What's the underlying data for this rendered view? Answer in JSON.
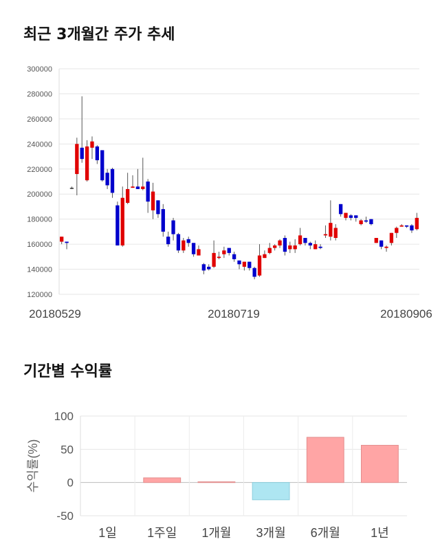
{
  "sections": {
    "price_title": "최근 3개월간 주가 추세",
    "returns_title": "기간별 수익률"
  },
  "colors": {
    "up": "#e00000",
    "down": "#0000cc",
    "positive_bar": "#ffa5a5",
    "negative_bar": "#aee6f2"
  },
  "chart_data": [
    {
      "type": "candlestick",
      "title": "최근 3개월간 주가 추세",
      "ylim": [
        120000,
        300000
      ],
      "yticks": [
        "300000",
        "280000",
        "260000",
        "240000",
        "220000",
        "200000",
        "180000",
        "160000",
        "140000",
        "120000"
      ],
      "ytick_values": [
        300000,
        280000,
        260000,
        240000,
        220000,
        200000,
        180000,
        160000,
        140000,
        120000
      ],
      "xtick_labels": [
        "20180529",
        "20180719",
        "20180906"
      ],
      "grid": true,
      "candles": [
        [
          162000,
          166000,
          160000,
          166000
        ],
        [
          162000,
          161000,
          156000,
          162000
        ],
        [
          205000,
          205000,
          204000,
          206000
        ],
        [
          216000,
          240000,
          199000,
          245000
        ],
        [
          237000,
          228000,
          225000,
          278000
        ],
        [
          211000,
          238000,
          210000,
          243000
        ],
        [
          237000,
          242000,
          228000,
          246000
        ],
        [
          238000,
          227000,
          224000,
          239000
        ],
        [
          235000,
          211000,
          210000,
          235000
        ],
        [
          217000,
          207000,
          204000,
          220000
        ],
        [
          220000,
          201000,
          197000,
          221000
        ],
        [
          191000,
          159000,
          159000,
          194000
        ],
        [
          159000,
          197000,
          158000,
          206000
        ],
        [
          193000,
          204000,
          192000,
          217000
        ],
        [
          205000,
          206000,
          205000,
          215000
        ],
        [
          206000,
          204000,
          204000,
          220000
        ],
        [
          204000,
          206000,
          203000,
          229000
        ],
        [
          210000,
          194000,
          185000,
          212000
        ],
        [
          187000,
          202000,
          180000,
          209000
        ],
        [
          195000,
          184000,
          181000,
          195000
        ],
        [
          188000,
          170000,
          166000,
          192000
        ],
        [
          166000,
          160000,
          158000,
          170000
        ],
        [
          179000,
          168000,
          163000,
          181000
        ],
        [
          168000,
          155000,
          153000,
          169000
        ],
        [
          155000,
          163000,
          153000,
          165000
        ],
        [
          164000,
          161000,
          158000,
          166000
        ],
        [
          161000,
          152000,
          150000,
          161000
        ],
        [
          151000,
          156000,
          151000,
          159000
        ],
        [
          144000,
          139000,
          136000,
          145000
        ],
        [
          142000,
          140000,
          139000,
          144000
        ],
        [
          142000,
          153000,
          141000,
          163000
        ],
        [
          149000,
          150000,
          148000,
          154000
        ],
        [
          152000,
          155000,
          149000,
          158000
        ],
        [
          157000,
          153000,
          151000,
          157000
        ],
        [
          152000,
          148000,
          146000,
          154000
        ],
        [
          147000,
          144000,
          140000,
          147000
        ],
        [
          142000,
          146000,
          139000,
          146000
        ],
        [
          146000,
          141000,
          139000,
          146000
        ],
        [
          141000,
          134000,
          132000,
          142000
        ],
        [
          135000,
          151000,
          134000,
          160000
        ],
        [
          149000,
          152000,
          149000,
          155000
        ],
        [
          153000,
          157000,
          152000,
          161000
        ],
        [
          157000,
          159000,
          155000,
          160000
        ],
        [
          159000,
          163000,
          157000,
          164000
        ],
        [
          165000,
          154000,
          151000,
          167000
        ],
        [
          156000,
          159000,
          153000,
          162000
        ],
        [
          156000,
          159000,
          153000,
          164000
        ],
        [
          160000,
          167000,
          159000,
          173000
        ],
        [
          165000,
          161000,
          159000,
          165000
        ],
        [
          161000,
          159000,
          156000,
          162000
        ],
        [
          156000,
          160000,
          156000,
          163000
        ],
        [
          158000,
          157000,
          156000,
          160000
        ],
        [
          167000,
          168000,
          165000,
          175000
        ],
        [
          166000,
          177000,
          163000,
          195000
        ],
        [
          165000,
          173000,
          163000,
          176000
        ],
        [
          192000,
          184000,
          182000,
          192000
        ],
        [
          181000,
          185000,
          179000,
          185000
        ],
        [
          183000,
          181000,
          179000,
          184000
        ],
        [
          183000,
          181000,
          178000,
          183000
        ],
        [
          176000,
          179000,
          175000,
          180000
        ],
        [
          179000,
          178000,
          177000,
          182000
        ],
        [
          180000,
          176000,
          175000,
          180000
        ],
        [
          161000,
          165000,
          161000,
          165000
        ],
        [
          163000,
          158000,
          156000,
          163000
        ],
        [
          157000,
          158000,
          154000,
          159000
        ],
        [
          161000,
          169000,
          159000,
          169000
        ],
        [
          169000,
          173000,
          165000,
          174000
        ],
        [
          174000,
          175000,
          174000,
          176000
        ],
        [
          175000,
          174000,
          173000,
          175000
        ],
        [
          175000,
          171000,
          169000,
          176000
        ],
        [
          172000,
          181000,
          171000,
          185000
        ]
      ]
    },
    {
      "type": "bar",
      "title": "기간별 수익률",
      "ylabel": "수익률(%)",
      "ylim": [
        -50,
        100
      ],
      "yticks": [
        "100",
        "50",
        "0",
        "-50"
      ],
      "ytick_values": [
        100,
        50,
        0,
        -50
      ],
      "categories": [
        "1일",
        "1주일",
        "1개월",
        "3개월",
        "6개월",
        "1년"
      ],
      "values": [
        0,
        7,
        1,
        -26,
        68,
        56
      ],
      "grid": true
    }
  ]
}
